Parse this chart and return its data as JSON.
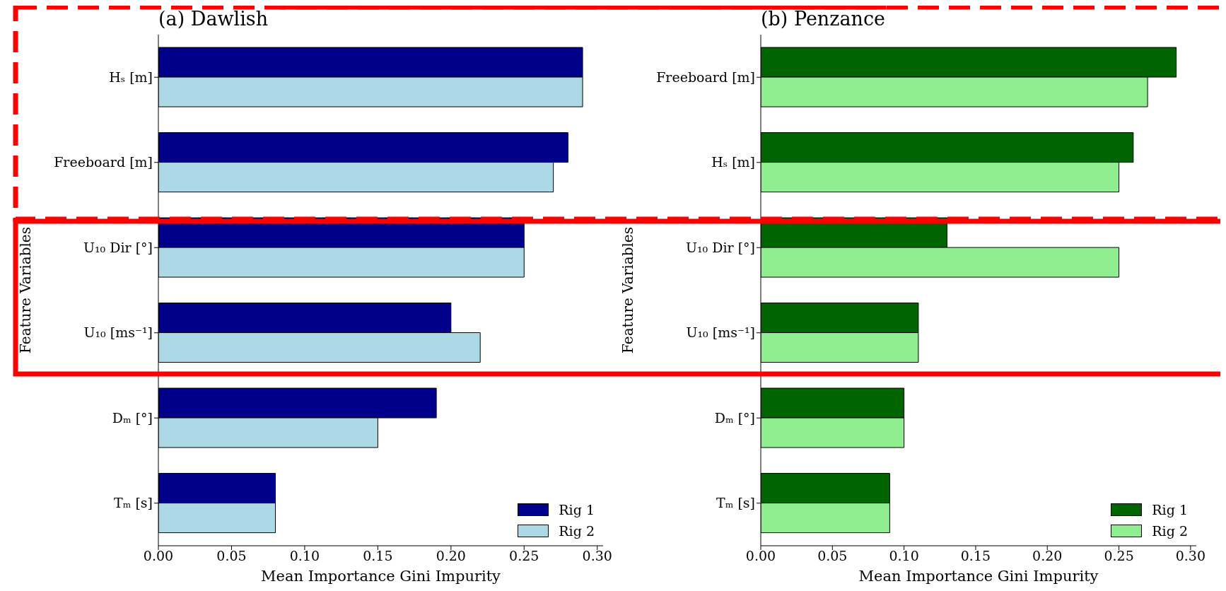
{
  "chart_data": [
    {
      "type": "bar",
      "orientation": "horizontal",
      "title": "(a) Dawlish",
      "xlabel": "Mean Importance Gini Impurity",
      "ylabel": "Feature Variables",
      "categories": [
        "Hₛ [m]",
        "Freeboard [m]",
        "U₁₀ Dir [°]",
        "U₁₀ [ms⁻¹]",
        "Dₘ [°]",
        "Tₘ [s]"
      ],
      "series": [
        {
          "name": "Rig 1",
          "color": "#00008b",
          "values": [
            0.29,
            0.28,
            0.25,
            0.2,
            0.19,
            0.08
          ]
        },
        {
          "name": "Rig 2",
          "color": "#add8e6",
          "values": [
            0.29,
            0.27,
            0.25,
            0.22,
            0.15,
            0.08
          ]
        }
      ],
      "xlim": [
        0,
        0.304
      ],
      "xticks": [
        {
          "value": 0,
          "label": "0.00"
        },
        {
          "value": 0.05,
          "label": "0.05"
        },
        {
          "value": 0.1,
          "label": "0.10"
        },
        {
          "value": 0.15,
          "label": "0.15"
        },
        {
          "value": 0.2,
          "label": "0.20"
        },
        {
          "value": 0.25,
          "label": "0.25"
        },
        {
          "value": 0.3,
          "label": "0.30"
        }
      ],
      "legend": "bottom right"
    },
    {
      "type": "bar",
      "orientation": "horizontal",
      "title": "(b) Penzance",
      "xlabel": "Mean Importance Gini Impurity",
      "ylabel": "Feature Variables",
      "categories": [
        "Freeboard [m]",
        "Hₛ [m]",
        "U₁₀ Dir [°]",
        "U₁₀ [ms⁻¹]",
        "Dₘ [°]",
        "Tₘ [s]"
      ],
      "series": [
        {
          "name": "Rig 1",
          "color": "#006400",
          "values": [
            0.29,
            0.26,
            0.13,
            0.11,
            0.1,
            0.09
          ]
        },
        {
          "name": "Rig 2",
          "color": "#90ee90",
          "values": [
            0.27,
            0.25,
            0.25,
            0.11,
            0.1,
            0.09
          ]
        }
      ],
      "xlim": [
        0,
        0.304
      ],
      "xticks": [
        {
          "value": 0,
          "label": "0.00"
        },
        {
          "value": 0.05,
          "label": "0.05"
        },
        {
          "value": 0.1,
          "label": "0.10"
        },
        {
          "value": 0.15,
          "label": "0.15"
        },
        {
          "value": 0.2,
          "label": "0.20"
        },
        {
          "value": 0.25,
          "label": "0.25"
        },
        {
          "value": 0.3,
          "label": "0.30"
        }
      ],
      "legend": "bottom right"
    }
  ]
}
